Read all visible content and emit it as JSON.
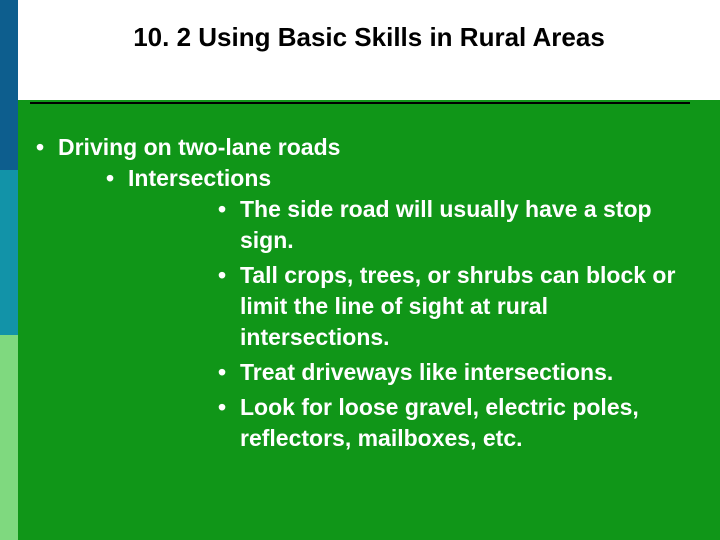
{
  "slide": {
    "title": "10. 2 Using Basic Skills in Rural Areas",
    "title_fontsize": 26,
    "title_color": "#000000",
    "background_color": "#109618",
    "header_background": "#ffffff",
    "sidebar_colors": [
      "#0d5e8e",
      "#1293a8",
      "#7fd97f"
    ],
    "divider_color": "#000000",
    "text_color": "#ffffff",
    "body_fontsize": 23,
    "bullets": {
      "lvl1": "Driving on two-lane roads",
      "lvl2": "Intersections",
      "lvl3_1": "The side road will usually have a stop sign.",
      "lvl3_2": "Tall crops, trees, or shrubs can block or limit the line of sight at rural intersections.",
      "lvl3_3": "Treat driveways like intersections.",
      "lvl3_4": "Look for loose gravel, electric poles, reflectors, mailboxes, etc."
    }
  }
}
